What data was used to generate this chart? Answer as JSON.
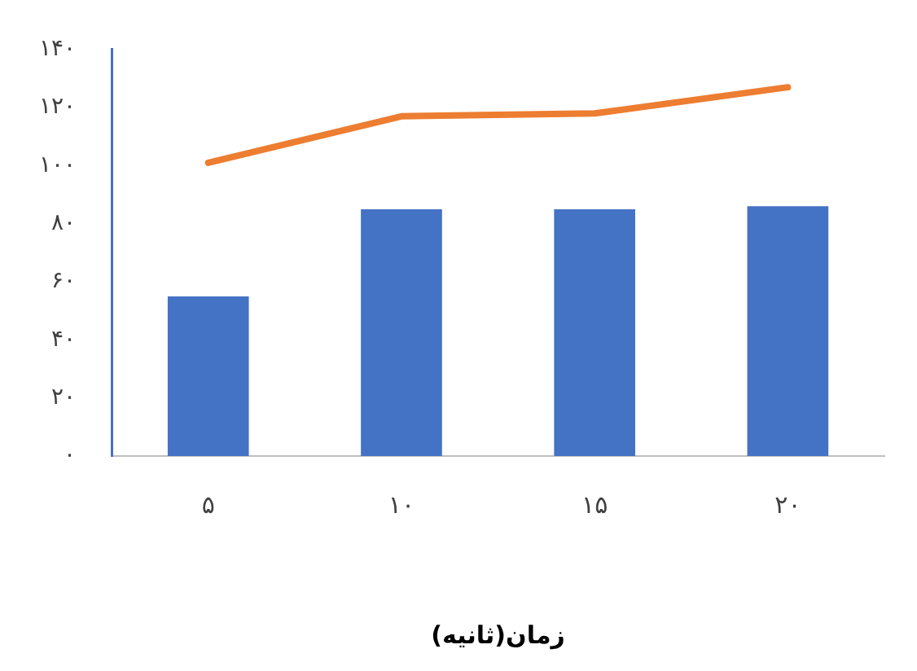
{
  "chart_data": {
    "type": "bar",
    "xlabel": "زمان(ثانیه)",
    "categories": [
      "۵",
      "۱۰",
      "۱۵",
      "۲۰"
    ],
    "series": [
      {
        "color": "#4472c4",
        "values": [
          55,
          85,
          85,
          86
        ]
      },
      {
        "type": "line",
        "color": "#ed7d31",
        "values": [
          101,
          117,
          118,
          127
        ]
      }
    ],
    "ylim": [
      0,
      140
    ],
    "yticks": [
      {
        "value": 0,
        "label": "۰"
      },
      {
        "value": 20,
        "label": "۲۰"
      },
      {
        "value": 40,
        "label": "۴۰"
      },
      {
        "value": 60,
        "label": "۶۰"
      },
      {
        "value": 80,
        "label": "۸۰"
      },
      {
        "value": 100,
        "label": "۱۰۰"
      },
      {
        "value": 120,
        "label": "۱۲۰"
      },
      {
        "value": 140,
        "label": "۱۴۰"
      }
    ],
    "grid": false,
    "legend": false,
    "marker": "none",
    "line_style": "solid"
  }
}
